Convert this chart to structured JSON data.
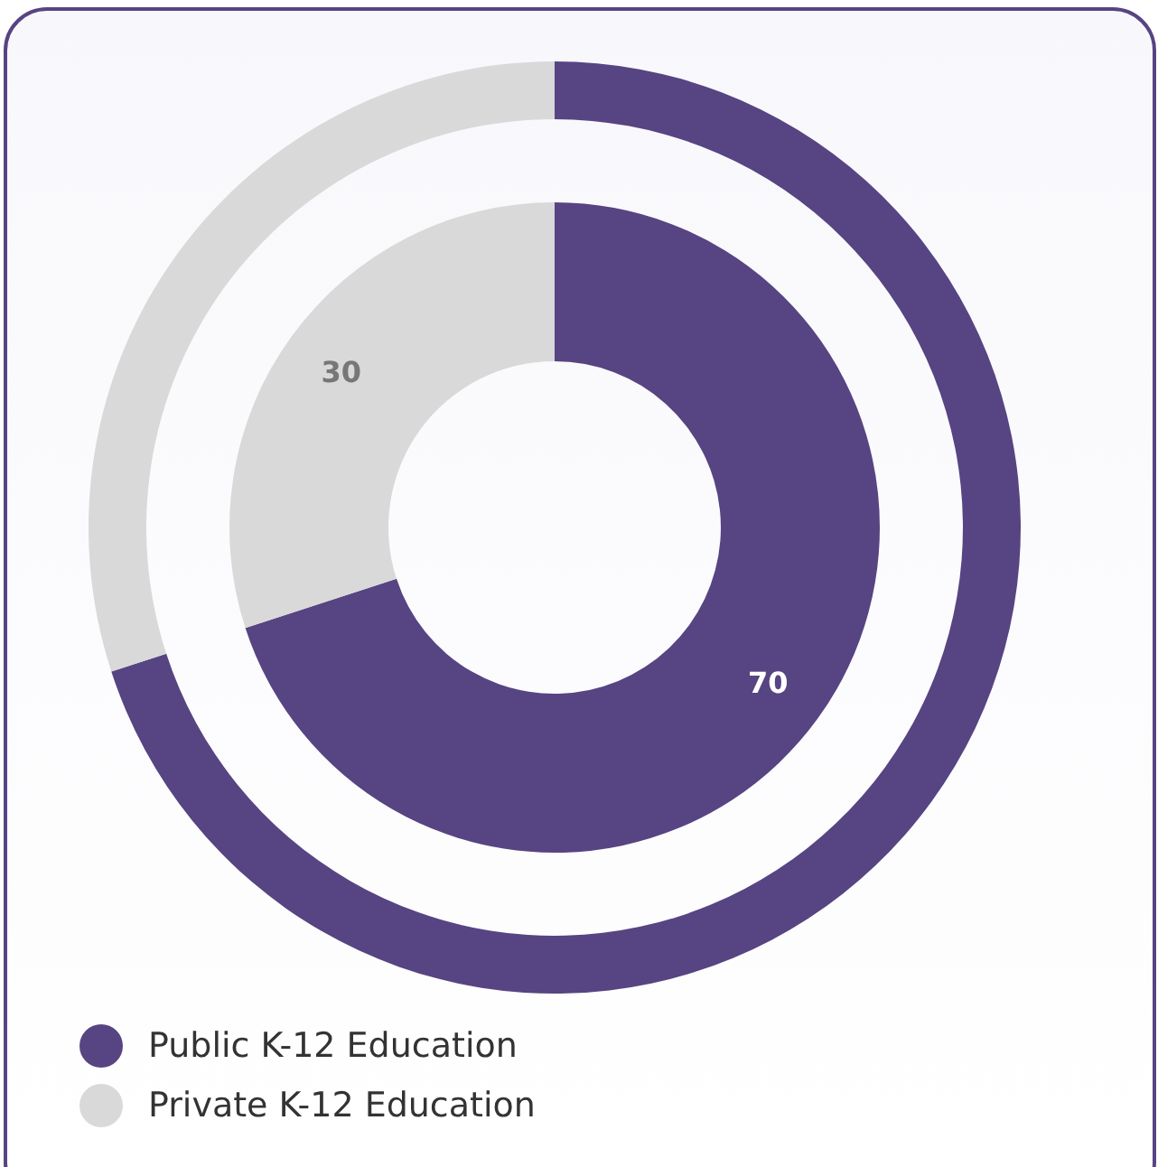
{
  "chart_data": {
    "type": "donut",
    "categories": [
      "Public K-12 Education",
      "Private K-12 Education"
    ],
    "colors": [
      "#574482",
      "#d9d9d9"
    ],
    "legend": "bottom left",
    "series": [
      {
        "values": [
          70,
          30
        ],
        "value_labels": [
          "70",
          "30"
        ]
      },
      {
        "values": [
          70,
          30
        ]
      }
    ]
  }
}
